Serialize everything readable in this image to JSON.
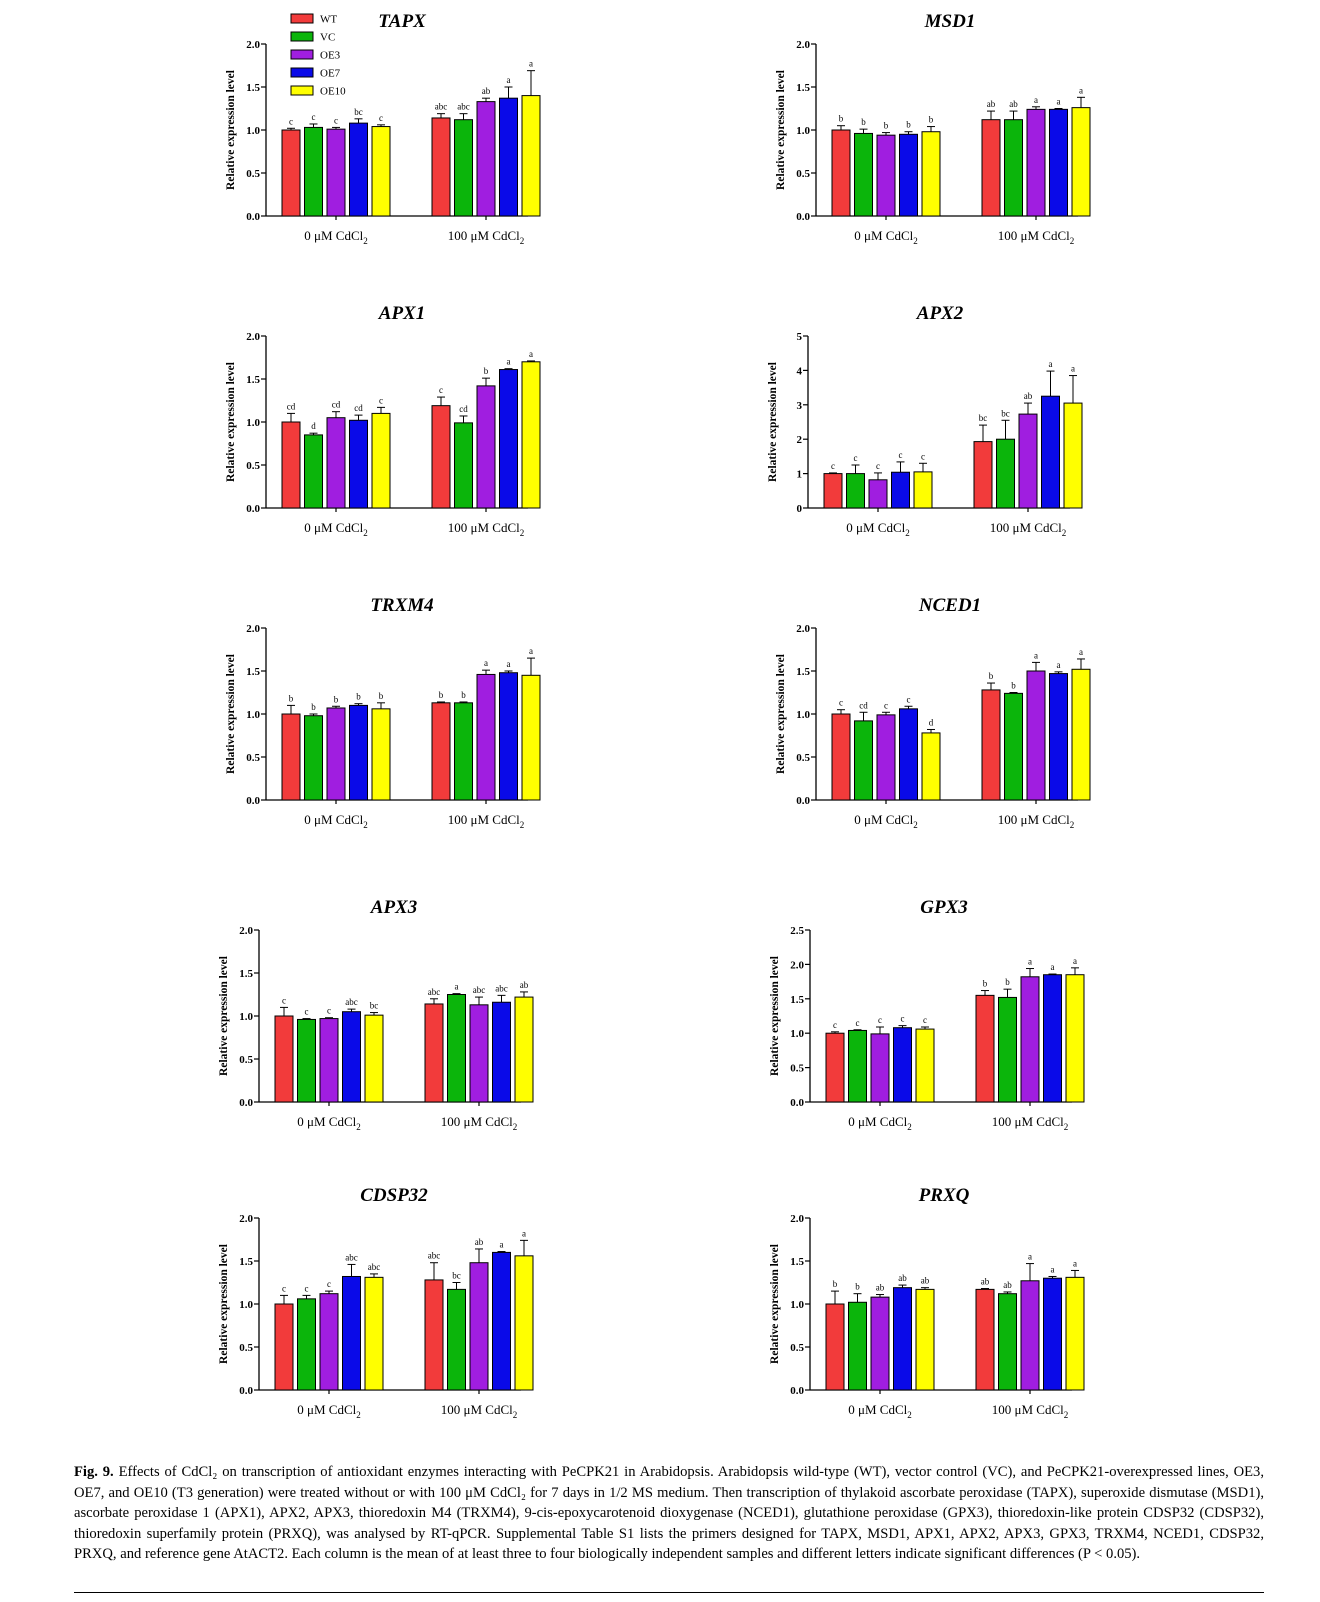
{
  "legend": {
    "entries": [
      "WT",
      "VC",
      "OE3",
      "OE7",
      "OE10"
    ],
    "colors": [
      "#f23b3b",
      "#0bb50b",
      "#a01ee0",
      "#0a0ae8",
      "#ffff00"
    ]
  },
  "chart_data": [
    {
      "type": "bar",
      "title": "TAPX",
      "ylabel": "Relative expression level",
      "categories": [
        "0 μM CdCl2",
        "100 μM CdCl2"
      ],
      "ylim": [
        0,
        2
      ],
      "yticks": [
        "0.0",
        "0.5",
        "1.0",
        "1.5",
        "2.0"
      ],
      "series": [
        {
          "name": "WT",
          "values": [
            1.0,
            1.14
          ],
          "errors": [
            0.02,
            0.05
          ],
          "letters": [
            "c",
            "abc"
          ]
        },
        {
          "name": "VC",
          "values": [
            1.03,
            1.12
          ],
          "errors": [
            0.04,
            0.07
          ],
          "letters": [
            "c",
            "abc"
          ]
        },
        {
          "name": "OE3",
          "values": [
            1.01,
            1.33
          ],
          "errors": [
            0.02,
            0.04
          ],
          "letters": [
            "c",
            "ab"
          ]
        },
        {
          "name": "OE7",
          "values": [
            1.08,
            1.37
          ],
          "errors": [
            0.05,
            0.13
          ],
          "letters": [
            "bc",
            "a"
          ]
        },
        {
          "name": "OE10",
          "values": [
            1.04,
            1.4
          ],
          "errors": [
            0.02,
            0.29
          ],
          "letters": [
            "c",
            "a"
          ]
        }
      ]
    },
    {
      "type": "bar",
      "title": "MSD1",
      "ylabel": "Relative expression level",
      "categories": [
        "0 μM CdCl2",
        "100 μM CdCl2"
      ],
      "ylim": [
        0,
        2
      ],
      "yticks": [
        "0.0",
        "0.5",
        "1.0",
        "1.5",
        "2.0"
      ],
      "series": [
        {
          "name": "WT",
          "values": [
            1.0,
            1.12
          ],
          "errors": [
            0.05,
            0.1
          ],
          "letters": [
            "b",
            "ab"
          ]
        },
        {
          "name": "VC",
          "values": [
            0.96,
            1.12
          ],
          "errors": [
            0.05,
            0.1
          ],
          "letters": [
            "b",
            "ab"
          ]
        },
        {
          "name": "OE3",
          "values": [
            0.94,
            1.24
          ],
          "errors": [
            0.03,
            0.03
          ],
          "letters": [
            "b",
            "a"
          ]
        },
        {
          "name": "OE7",
          "values": [
            0.95,
            1.24
          ],
          "errors": [
            0.03,
            0.01
          ],
          "letters": [
            "b",
            "a"
          ]
        },
        {
          "name": "OE10",
          "values": [
            0.98,
            1.26
          ],
          "errors": [
            0.06,
            0.12
          ],
          "letters": [
            "b",
            "a"
          ]
        }
      ]
    },
    {
      "type": "bar",
      "title": "APX1",
      "ylabel": "Relative expression level",
      "categories": [
        "0 μM CdCl2",
        "100 μM CdCl2"
      ],
      "ylim": [
        0,
        2
      ],
      "yticks": [
        "0.0",
        "0.5",
        "1.0",
        "1.5",
        "2.0"
      ],
      "series": [
        {
          "name": "WT",
          "values": [
            1.0,
            1.19
          ],
          "errors": [
            0.1,
            0.1
          ],
          "letters": [
            "cd",
            "c"
          ]
        },
        {
          "name": "VC",
          "values": [
            0.85,
            0.99
          ],
          "errors": [
            0.02,
            0.08
          ],
          "letters": [
            "d",
            "cd"
          ]
        },
        {
          "name": "OE3",
          "values": [
            1.05,
            1.42
          ],
          "errors": [
            0.07,
            0.09
          ],
          "letters": [
            "cd",
            "b"
          ]
        },
        {
          "name": "OE7",
          "values": [
            1.02,
            1.61
          ],
          "errors": [
            0.06,
            0.01
          ],
          "letters": [
            "cd",
            "a"
          ]
        },
        {
          "name": "OE10",
          "values": [
            1.1,
            1.7
          ],
          "errors": [
            0.07,
            0.01
          ],
          "letters": [
            "c",
            "a"
          ]
        }
      ]
    },
    {
      "type": "bar",
      "title": "APX2",
      "ylabel": "Relative expression level",
      "categories": [
        "0 μM CdCl2",
        "100 μM CdCl2"
      ],
      "ylim": [
        0,
        5
      ],
      "yticks": [
        "0",
        "1",
        "2",
        "3",
        "4",
        "5"
      ],
      "series": [
        {
          "name": "WT",
          "values": [
            1.0,
            1.93
          ],
          "errors": [
            0.02,
            0.48
          ],
          "letters": [
            "c",
            "bc"
          ]
        },
        {
          "name": "VC",
          "values": [
            1.0,
            2.0
          ],
          "errors": [
            0.25,
            0.55
          ],
          "letters": [
            "c",
            "bc"
          ]
        },
        {
          "name": "OE3",
          "values": [
            0.82,
            2.73
          ],
          "errors": [
            0.2,
            0.32
          ],
          "letters": [
            "c",
            "ab"
          ]
        },
        {
          "name": "OE7",
          "values": [
            1.04,
            3.25
          ],
          "errors": [
            0.3,
            0.73
          ],
          "letters": [
            "c",
            "a"
          ]
        },
        {
          "name": "OE10",
          "values": [
            1.05,
            3.05
          ],
          "errors": [
            0.25,
            0.8
          ],
          "letters": [
            "c",
            "a"
          ]
        }
      ]
    },
    {
      "type": "bar",
      "title": "TRXM4",
      "ylabel": "Relative expression level",
      "categories": [
        "0 μM CdCl2",
        "100 μM CdCl2"
      ],
      "ylim": [
        0,
        2
      ],
      "yticks": [
        "0.0",
        "0.5",
        "1.0",
        "1.5",
        "2.0"
      ],
      "series": [
        {
          "name": "WT",
          "values": [
            1.0,
            1.13
          ],
          "errors": [
            0.1,
            0.01
          ],
          "letters": [
            "b",
            "b"
          ]
        },
        {
          "name": "VC",
          "values": [
            0.98,
            1.13
          ],
          "errors": [
            0.02,
            0.01
          ],
          "letters": [
            "b",
            "b"
          ]
        },
        {
          "name": "OE3",
          "values": [
            1.07,
            1.46
          ],
          "errors": [
            0.02,
            0.05
          ],
          "letters": [
            "b",
            "a"
          ]
        },
        {
          "name": "OE7",
          "values": [
            1.1,
            1.48
          ],
          "errors": [
            0.02,
            0.02
          ],
          "letters": [
            "b",
            "a"
          ]
        },
        {
          "name": "OE10",
          "values": [
            1.06,
            1.45
          ],
          "errors": [
            0.07,
            0.2
          ],
          "letters": [
            "b",
            "a"
          ]
        }
      ]
    },
    {
      "type": "bar",
      "title": "NCED1",
      "ylabel": "Relative expression level",
      "categories": [
        "0 μM CdCl2",
        "100 μM CdCl2"
      ],
      "ylim": [
        0,
        2
      ],
      "yticks": [
        "0.0",
        "0.5",
        "1.0",
        "1.5",
        "2.0"
      ],
      "series": [
        {
          "name": "WT",
          "values": [
            1.0,
            1.28
          ],
          "errors": [
            0.05,
            0.08
          ],
          "letters": [
            "c",
            "b"
          ]
        },
        {
          "name": "VC",
          "values": [
            0.92,
            1.24
          ],
          "errors": [
            0.1,
            0.01
          ],
          "letters": [
            "cd",
            "b"
          ]
        },
        {
          "name": "OE3",
          "values": [
            0.99,
            1.5
          ],
          "errors": [
            0.03,
            0.1
          ],
          "letters": [
            "c",
            "a"
          ]
        },
        {
          "name": "OE7",
          "values": [
            1.06,
            1.47
          ],
          "errors": [
            0.03,
            0.02
          ],
          "letters": [
            "c",
            "a"
          ]
        },
        {
          "name": "OE10",
          "values": [
            0.78,
            1.52
          ],
          "errors": [
            0.04,
            0.12
          ],
          "letters": [
            "d",
            "a"
          ]
        }
      ]
    },
    {
      "type": "bar",
      "title": "APX3",
      "ylabel": "Relative expression level",
      "categories": [
        "0 μM CdCl2",
        "100 μM CdCl2"
      ],
      "ylim": [
        0,
        2
      ],
      "yticks": [
        "0.0",
        "0.5",
        "1.0",
        "1.5",
        "2.0"
      ],
      "series": [
        {
          "name": "WT",
          "values": [
            1.0,
            1.14
          ],
          "errors": [
            0.1,
            0.06
          ],
          "letters": [
            "c",
            "abc"
          ]
        },
        {
          "name": "VC",
          "values": [
            0.96,
            1.25
          ],
          "errors": [
            0.01,
            0.01
          ],
          "letters": [
            "c",
            "a"
          ]
        },
        {
          "name": "OE3",
          "values": [
            0.97,
            1.13
          ],
          "errors": [
            0.01,
            0.09
          ],
          "letters": [
            "c",
            "abc"
          ]
        },
        {
          "name": "OE7",
          "values": [
            1.05,
            1.16
          ],
          "errors": [
            0.03,
            0.08
          ],
          "letters": [
            "abc",
            "abc"
          ]
        },
        {
          "name": "OE10",
          "values": [
            1.01,
            1.22
          ],
          "errors": [
            0.03,
            0.06
          ],
          "letters": [
            "bc",
            "ab"
          ]
        }
      ]
    },
    {
      "type": "bar",
      "title": "GPX3",
      "ylabel": "Relative expression level",
      "categories": [
        "0 μM CdCl2",
        "100 μM CdCl2"
      ],
      "ylim": [
        0,
        2.5
      ],
      "yticks": [
        "0.0",
        "0.5",
        "1.0",
        "1.5",
        "2.0",
        "2.5"
      ],
      "series": [
        {
          "name": "WT",
          "values": [
            1.0,
            1.55
          ],
          "errors": [
            0.02,
            0.07
          ],
          "letters": [
            "c",
            "b"
          ]
        },
        {
          "name": "VC",
          "values": [
            1.04,
            1.52
          ],
          "errors": [
            0.01,
            0.12
          ],
          "letters": [
            "c",
            "b"
          ]
        },
        {
          "name": "OE3",
          "values": [
            0.99,
            1.82
          ],
          "errors": [
            0.1,
            0.12
          ],
          "letters": [
            "c",
            "a"
          ]
        },
        {
          "name": "OE7",
          "values": [
            1.08,
            1.85
          ],
          "errors": [
            0.03,
            0.01
          ],
          "letters": [
            "c",
            "a"
          ]
        },
        {
          "name": "OE10",
          "values": [
            1.06,
            1.85
          ],
          "errors": [
            0.03,
            0.1
          ],
          "letters": [
            "c",
            "a"
          ]
        }
      ]
    },
    {
      "type": "bar",
      "title": "CDSP32",
      "ylabel": "Relative expression level",
      "categories": [
        "0 μM CdCl2",
        "100 μM CdCl2"
      ],
      "ylim": [
        0,
        2
      ],
      "yticks": [
        "0.0",
        "0.5",
        "1.0",
        "1.5",
        "2.0"
      ],
      "series": [
        {
          "name": "WT",
          "values": [
            1.0,
            1.28
          ],
          "errors": [
            0.1,
            0.2
          ],
          "letters": [
            "c",
            "abc"
          ]
        },
        {
          "name": "VC",
          "values": [
            1.06,
            1.17
          ],
          "errors": [
            0.04,
            0.08
          ],
          "letters": [
            "c",
            "bc"
          ]
        },
        {
          "name": "OE3",
          "values": [
            1.12,
            1.48
          ],
          "errors": [
            0.03,
            0.16
          ],
          "letters": [
            "c",
            "ab"
          ]
        },
        {
          "name": "OE7",
          "values": [
            1.32,
            1.6
          ],
          "errors": [
            0.14,
            0.01
          ],
          "letters": [
            "abc",
            "a"
          ]
        },
        {
          "name": "OE10",
          "values": [
            1.31,
            1.56
          ],
          "errors": [
            0.04,
            0.18
          ],
          "letters": [
            "abc",
            "a"
          ]
        }
      ]
    },
    {
      "type": "bar",
      "title": "PRXQ",
      "ylabel": "Relative expression level",
      "categories": [
        "0 μM CdCl2",
        "100 μM CdCl2"
      ],
      "ylim": [
        0,
        2
      ],
      "yticks": [
        "0.0",
        "0.5",
        "1.0",
        "1.5",
        "2.0"
      ],
      "series": [
        {
          "name": "WT",
          "values": [
            1.0,
            1.17
          ],
          "errors": [
            0.15,
            0.01
          ],
          "letters": [
            "b",
            "ab"
          ]
        },
        {
          "name": "VC",
          "values": [
            1.02,
            1.12
          ],
          "errors": [
            0.1,
            0.02
          ],
          "letters": [
            "b",
            "ab"
          ]
        },
        {
          "name": "OE3",
          "values": [
            1.08,
            1.27
          ],
          "errors": [
            0.03,
            0.2
          ],
          "letters": [
            "ab",
            "a"
          ]
        },
        {
          "name": "OE7",
          "values": [
            1.19,
            1.3
          ],
          "errors": [
            0.03,
            0.02
          ],
          "letters": [
            "ab",
            "a"
          ]
        },
        {
          "name": "OE10",
          "values": [
            1.17,
            1.31
          ],
          "errors": [
            0.02,
            0.08
          ],
          "letters": [
            "ab",
            "a"
          ]
        }
      ]
    }
  ],
  "caption": {
    "label": "Fig. 9.",
    "text": "Effects of CdCl₂ on transcription of antioxidant enzymes interacting with PeCPK21 in Arabidopsis. Arabidopsis wild-type (WT), vector control (VC), and PeCPK21-overexpressed lines, OE3, OE7, and OE10 (T3 generation) were treated without or with 100 μM CdCl₂ for 7 days in 1/2 MS medium. Then transcription of thylakoid ascorbate peroxidase (TAPX), superoxide dismutase (MSD1), ascorbate peroxidase 1 (APX1), APX2, APX3, thioredoxin M4 (TRXM4), 9-cis-epoxycarotenoid dioxygenase (NCED1), glutathione peroxidase (GPX3), thioredoxin-like protein CDSP32 (CDSP32), thioredoxin superfamily protein (PRXQ), was analysed by RT-qPCR. Supplemental Table S1 lists the primers designed for TAPX, MSD1, APX1, APX2, APX3, GPX3, TRXM4, NCED1, CDSP32, PRXQ, and reference gene AtACT2. Each column is the mean of at least three to four biologically independent samples and different letters indicate significant differences (P < 0.05)."
  }
}
